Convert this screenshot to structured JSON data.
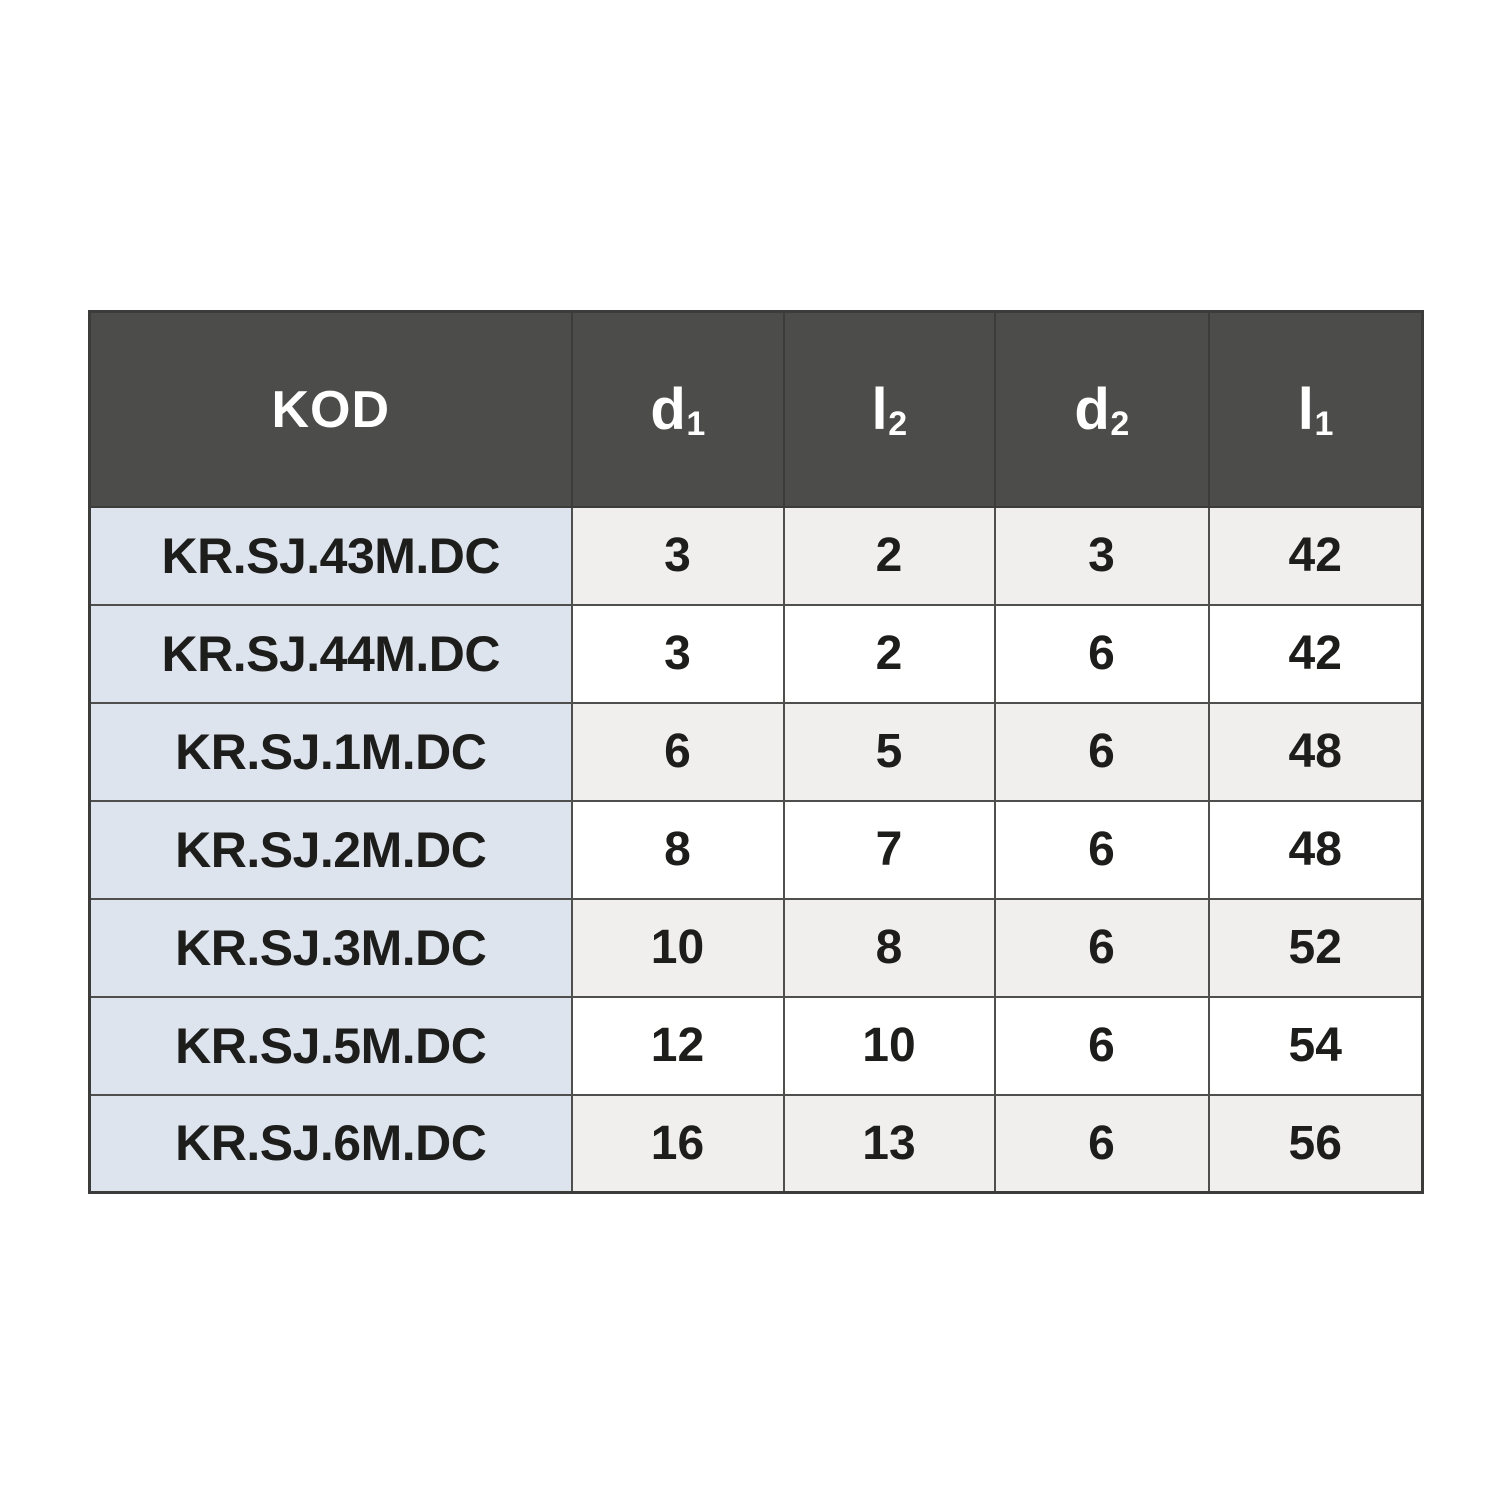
{
  "colors": {
    "page_bg": "#ffffff",
    "header_bg": "#4c4c4b",
    "header_text": "#ffffff",
    "kod_bg": "#dee4ee",
    "row_alt_bg": "#f0efed",
    "row_bg": "#ffffff",
    "text": "#1d1d1b",
    "border": "#4f4f4e",
    "border_strong": "#3c3c3b"
  },
  "table": {
    "columns": [
      {
        "key": "kod",
        "base": "KOD",
        "sub": ""
      },
      {
        "key": "d1",
        "base": "d",
        "sub": "1"
      },
      {
        "key": "l2",
        "base": "l",
        "sub": "2"
      },
      {
        "key": "d2",
        "base": "d",
        "sub": "2"
      },
      {
        "key": "l1",
        "base": "l",
        "sub": "1"
      }
    ],
    "rows": [
      {
        "kod": "KR.SJ.43M.DC",
        "d1": "3",
        "l2": "2",
        "d2": "3",
        "l1": "42"
      },
      {
        "kod": "KR.SJ.44M.DC",
        "d1": "3",
        "l2": "2",
        "d2": "6",
        "l1": "42"
      },
      {
        "kod": "KR.SJ.1M.DC",
        "d1": "6",
        "l2": "5",
        "d2": "6",
        "l1": "48"
      },
      {
        "kod": "KR.SJ.2M.DC",
        "d1": "8",
        "l2": "7",
        "d2": "6",
        "l1": "48"
      },
      {
        "kod": "KR.SJ.3M.DC",
        "d1": "10",
        "l2": "8",
        "d2": "6",
        "l1": "52"
      },
      {
        "kod": "KR.SJ.5M.DC",
        "d1": "12",
        "l2": "10",
        "d2": "6",
        "l1": "54"
      },
      {
        "kod": "KR.SJ.6M.DC",
        "d1": "16",
        "l2": "13",
        "d2": "6",
        "l1": "56"
      }
    ]
  },
  "chart_data": {
    "type": "table",
    "title": "",
    "columns": [
      "KOD",
      "d1",
      "l2",
      "d2",
      "l1"
    ],
    "rows": [
      [
        "KR.SJ.43M.DC",
        3,
        2,
        3,
        42
      ],
      [
        "KR.SJ.44M.DC",
        3,
        2,
        6,
        42
      ],
      [
        "KR.SJ.1M.DC",
        6,
        5,
        6,
        48
      ],
      [
        "KR.SJ.2M.DC",
        8,
        7,
        6,
        48
      ],
      [
        "KR.SJ.3M.DC",
        10,
        8,
        6,
        52
      ],
      [
        "KR.SJ.5M.DC",
        12,
        10,
        6,
        54
      ],
      [
        "KR.SJ.6M.DC",
        16,
        13,
        6,
        56
      ]
    ]
  }
}
